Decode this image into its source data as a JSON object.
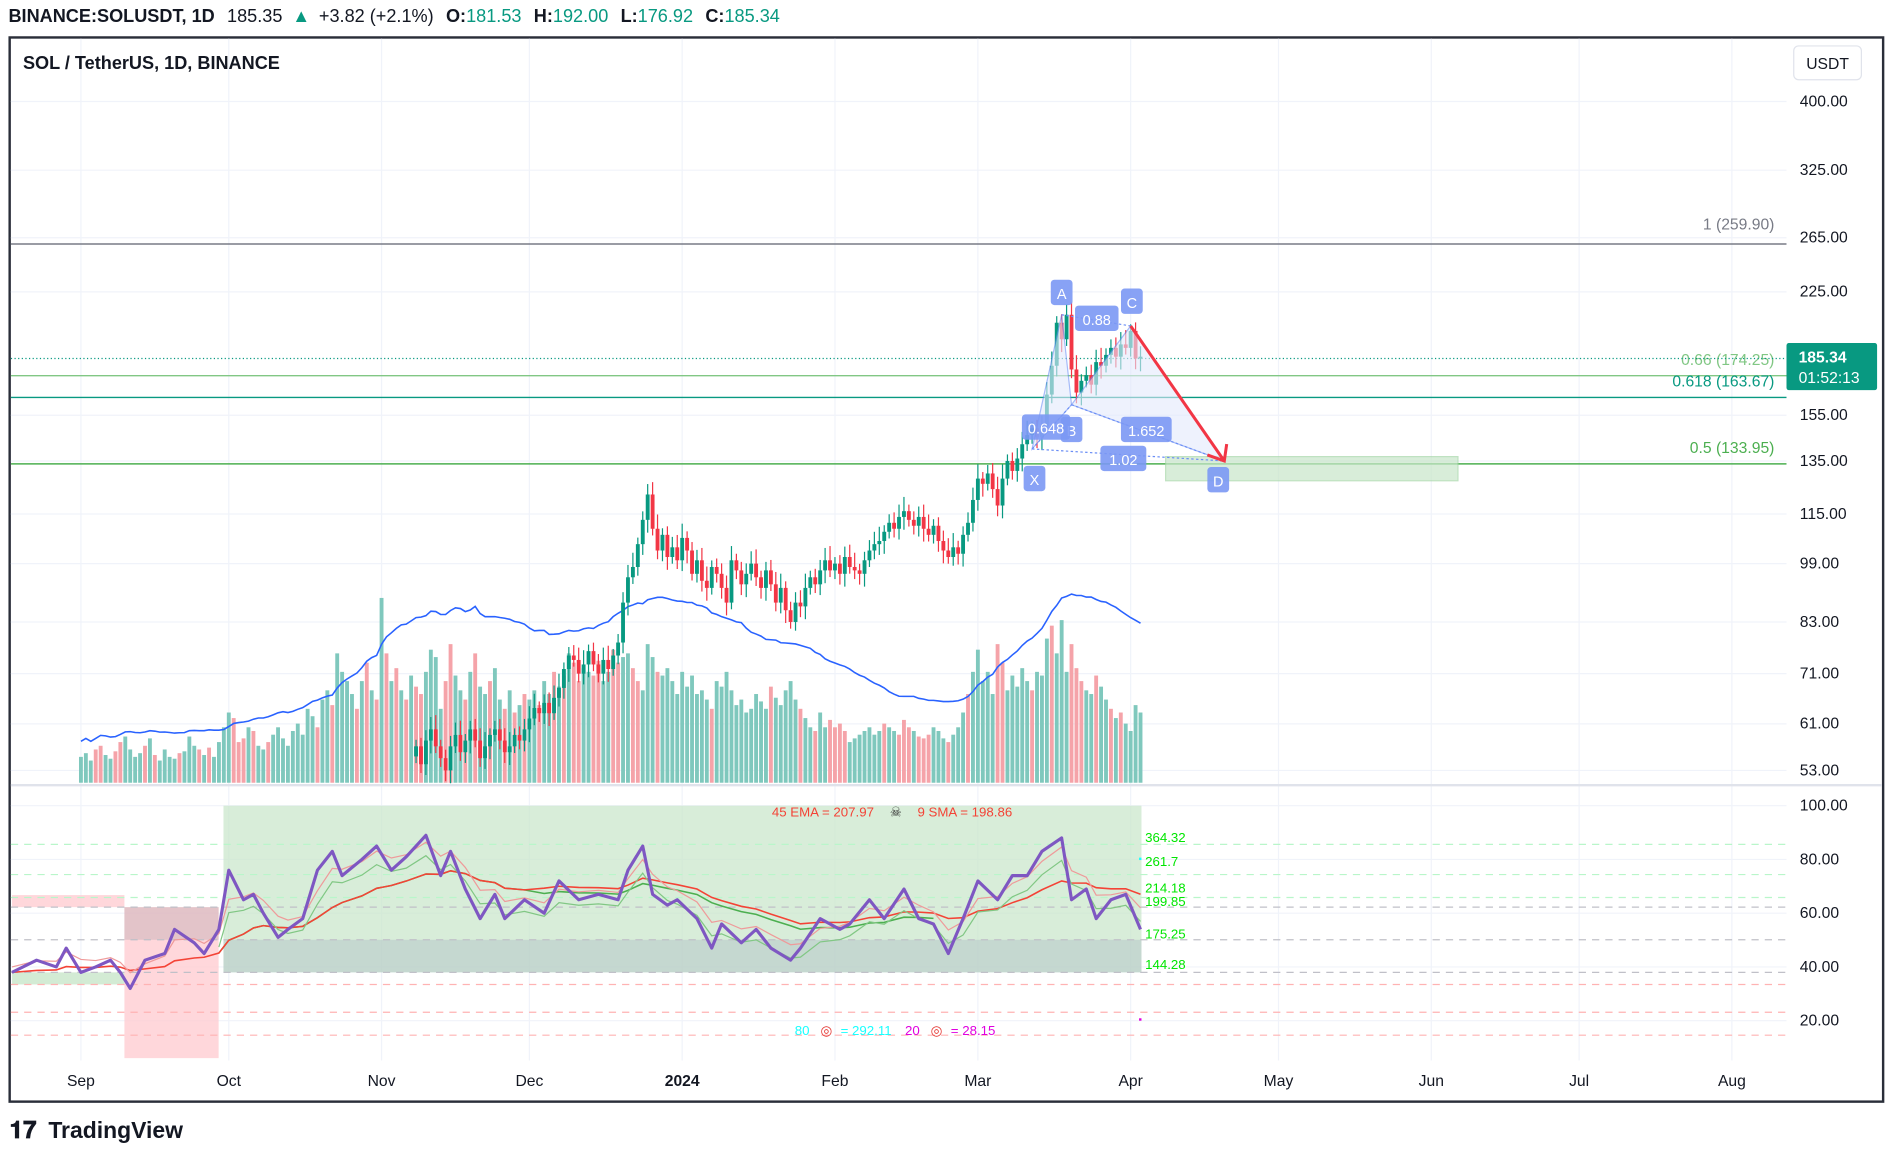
{
  "header": {
    "symbol": "BINANCE:SOLUSDT, 1D",
    "last": "185.35",
    "change": "+3.82 (+2.1%)",
    "o_label": "O:",
    "o": "181.53",
    "h_label": "H:",
    "h": "192.00",
    "l_label": "L:",
    "l": "176.92",
    "c_label": "C:",
    "c": "185.34",
    "up_icon": "triangle-up-icon"
  },
  "legend_title": "SOL / TetherUS, 1D, BINANCE",
  "currency_button": "USDT",
  "price_badge": {
    "price": "185.34",
    "countdown": "01:52:13"
  },
  "brand": "TradingView",
  "colors": {
    "up": "#089981",
    "down": "#f23645",
    "vol_up": "#7fc8bd",
    "vol_down": "#f5a3a9",
    "vol_ma": "#2962ff",
    "osc": "#7e57c2",
    "pattern": "#6b8ef5",
    "badge": "#089981"
  },
  "fib_levels": [
    {
      "label": "1 (259.90)",
      "price": 259.9,
      "color": "#787b86"
    },
    {
      "label": "0.66 (174.25)",
      "price": 174.25,
      "color": "#81c784"
    },
    {
      "label": "0.618 (163.67)",
      "price": 163.67,
      "color": "#089981"
    },
    {
      "label": "0.5 (133.95)",
      "price": 133.95,
      "color": "#4caf50"
    }
  ],
  "pattern": {
    "points": [
      {
        "label": "X",
        "date": "2024-03-12",
        "price": 140
      },
      {
        "label": "A",
        "date": "2024-03-18",
        "price": 210
      },
      {
        "label": "B",
        "date": "2024-03-20",
        "price": 160
      },
      {
        "label": "C",
        "date": "2024-04-01",
        "price": 203
      },
      {
        "label": "D",
        "date": "2024-04-20",
        "price": 135
      }
    ],
    "ratios": [
      "0.648",
      "0.88",
      "1.652",
      "1.02"
    ]
  },
  "oscillator": {
    "ema_label": "45 EMA = 207.97",
    "skull_icon": "skull-icon",
    "sma_label": "9 SMA = 198.86",
    "right_labels": [
      "364.32",
      "261.7",
      "214.18",
      "199.85",
      "175.25",
      "144.28"
    ],
    "bottom_labels": {
      "a_num": "80",
      "a_val": "= 292.11",
      "b_num": "20",
      "b_val": "= 28.15",
      "target_icon": "target-icon"
    },
    "ticks": [
      "100.00",
      "80.00",
      "60.00",
      "40.00",
      "20.00"
    ]
  },
  "chart_data": {
    "type": "candlestick",
    "title": "SOL / TetherUS, 1D, BINANCE",
    "price_scale": "log",
    "y_ticks": [
      "400.00",
      "325.00",
      "265.00",
      "225.00",
      "155.00",
      "135.00",
      "115.00",
      "99.00",
      "83.00",
      "71.00",
      "61.00",
      "53.00"
    ],
    "x_ticks": [
      "Sep",
      "Oct",
      "Nov",
      "Dec",
      "2024",
      "Feb",
      "Mar",
      "Apr",
      "May",
      "Jun",
      "Jul",
      "Aug"
    ],
    "closes": [
      [
        "2023-11-08",
        57
      ],
      [
        "2023-11-09",
        54
      ],
      [
        "2023-11-10",
        58
      ],
      [
        "2023-11-11",
        60
      ],
      [
        "2023-11-12",
        57
      ],
      [
        "2023-11-13",
        55
      ],
      [
        "2023-11-14",
        53
      ],
      [
        "2023-11-15",
        57
      ],
      [
        "2023-11-16",
        59
      ],
      [
        "2023-11-17",
        56
      ],
      [
        "2023-11-18",
        58
      ],
      [
        "2023-11-19",
        60
      ],
      [
        "2023-11-20",
        58
      ],
      [
        "2023-11-21",
        55
      ],
      [
        "2023-11-22",
        57
      ],
      [
        "2023-11-23",
        59
      ],
      [
        "2023-11-24",
        60
      ],
      [
        "2023-11-25",
        58
      ],
      [
        "2023-11-26",
        56
      ],
      [
        "2023-11-27",
        57
      ],
      [
        "2023-11-28",
        59
      ],
      [
        "2023-11-29",
        58
      ],
      [
        "2023-11-30",
        60
      ],
      [
        "2023-12-01",
        62
      ],
      [
        "2023-12-02",
        64
      ],
      [
        "2023-12-03",
        63
      ],
      [
        "2023-12-04",
        65
      ],
      [
        "2023-12-05",
        63
      ],
      [
        "2023-12-06",
        66
      ],
      [
        "2023-12-07",
        68
      ],
      [
        "2023-12-08",
        72
      ],
      [
        "2023-12-09",
        75
      ],
      [
        "2023-12-10",
        74
      ],
      [
        "2023-12-11",
        71
      ],
      [
        "2023-12-12",
        73
      ],
      [
        "2023-12-13",
        76
      ],
      [
        "2023-12-14",
        73
      ],
      [
        "2023-12-15",
        71
      ],
      [
        "2023-12-16",
        74
      ],
      [
        "2023-12-17",
        72
      ],
      [
        "2023-12-18",
        75
      ],
      [
        "2023-12-19",
        78
      ],
      [
        "2023-12-20",
        88
      ],
      [
        "2023-12-21",
        95
      ],
      [
        "2023-12-22",
        98
      ],
      [
        "2023-12-23",
        105
      ],
      [
        "2023-12-24",
        113
      ],
      [
        "2023-12-25",
        122
      ],
      [
        "2023-12-26",
        110
      ],
      [
        "2023-12-27",
        103
      ],
      [
        "2023-12-28",
        108
      ],
      [
        "2023-12-29",
        101
      ],
      [
        "2023-12-30",
        104
      ],
      [
        "2023-12-31",
        100
      ],
      [
        "2024-01-01",
        107
      ],
      [
        "2024-01-02",
        103
      ],
      [
        "2024-01-03",
        96
      ],
      [
        "2024-01-04",
        100
      ],
      [
        "2024-01-05",
        94
      ],
      [
        "2024-01-06",
        92
      ],
      [
        "2024-01-07",
        98
      ],
      [
        "2024-01-08",
        96
      ],
      [
        "2024-01-09",
        92
      ],
      [
        "2024-01-10",
        88
      ],
      [
        "2024-01-11",
        100
      ],
      [
        "2024-01-12",
        97
      ],
      [
        "2024-01-13",
        93
      ],
      [
        "2024-01-14",
        96
      ],
      [
        "2024-01-15",
        99
      ],
      [
        "2024-01-16",
        95
      ],
      [
        "2024-01-17",
        92
      ],
      [
        "2024-01-18",
        97
      ],
      [
        "2024-01-19",
        93
      ],
      [
        "2024-01-20",
        88
      ],
      [
        "2024-01-21",
        92
      ],
      [
        "2024-01-22",
        86
      ],
      [
        "2024-01-23",
        83
      ],
      [
        "2024-01-24",
        88
      ],
      [
        "2024-01-25",
        87
      ],
      [
        "2024-01-26",
        92
      ],
      [
        "2024-01-27",
        95
      ],
      [
        "2024-01-28",
        93
      ],
      [
        "2024-01-29",
        97
      ],
      [
        "2024-01-30",
        100
      ],
      [
        "2024-01-31",
        97
      ],
      [
        "2024-02-01",
        99
      ],
      [
        "2024-02-02",
        96
      ],
      [
        "2024-02-03",
        101
      ],
      [
        "2024-02-04",
        98
      ],
      [
        "2024-02-05",
        97
      ],
      [
        "2024-02-06",
        96
      ],
      [
        "2024-02-07",
        100
      ],
      [
        "2024-02-08",
        103
      ],
      [
        "2024-02-09",
        105
      ],
      [
        "2024-02-10",
        106
      ],
      [
        "2024-02-11",
        109
      ],
      [
        "2024-02-12",
        112
      ],
      [
        "2024-02-13",
        110
      ],
      [
        "2024-02-14",
        114
      ],
      [
        "2024-02-15",
        116
      ],
      [
        "2024-02-16",
        113
      ],
      [
        "2024-02-17",
        111
      ],
      [
        "2024-02-18",
        114
      ],
      [
        "2024-02-19",
        110
      ],
      [
        "2024-02-20",
        108
      ],
      [
        "2024-02-21",
        111
      ],
      [
        "2024-02-22",
        106
      ],
      [
        "2024-02-23",
        103
      ],
      [
        "2024-02-24",
        101
      ],
      [
        "2024-02-25",
        104
      ],
      [
        "2024-02-26",
        102
      ],
      [
        "2024-02-27",
        108
      ],
      [
        "2024-02-28",
        112
      ],
      [
        "2024-02-29",
        120
      ],
      [
        "2024-03-01",
        128
      ],
      [
        "2024-03-02",
        126
      ],
      [
        "2024-03-03",
        130
      ],
      [
        "2024-03-04",
        124
      ],
      [
        "2024-03-05",
        118
      ],
      [
        "2024-03-06",
        128
      ],
      [
        "2024-03-07",
        135
      ],
      [
        "2024-03-08",
        131
      ],
      [
        "2024-03-09",
        136
      ],
      [
        "2024-03-10",
        142
      ],
      [
        "2024-03-11",
        146
      ],
      [
        "2024-03-12",
        149
      ],
      [
        "2024-03-13",
        145
      ],
      [
        "2024-03-14",
        150
      ],
      [
        "2024-03-15",
        165
      ],
      [
        "2024-03-16",
        180
      ],
      [
        "2024-03-17",
        205
      ],
      [
        "2024-03-18",
        195
      ],
      [
        "2024-03-19",
        210
      ],
      [
        "2024-03-20",
        178
      ],
      [
        "2024-03-21",
        166
      ],
      [
        "2024-03-22",
        172
      ],
      [
        "2024-03-23",
        175
      ],
      [
        "2024-03-24",
        170
      ],
      [
        "2024-03-25",
        182
      ],
      [
        "2024-03-26",
        180
      ],
      [
        "2024-03-27",
        186
      ],
      [
        "2024-03-28",
        190
      ],
      [
        "2024-03-29",
        185
      ],
      [
        "2024-03-30",
        192
      ],
      [
        "2024-03-31",
        190
      ],
      [
        "2024-04-01",
        200
      ],
      [
        "2024-04-02",
        184
      ],
      [
        "2024-04-03",
        185
      ]
    ],
    "volume_relative": [
      14,
      16,
      12,
      18,
      20,
      15,
      13,
      17,
      22,
      25,
      18,
      14,
      16,
      20,
      24,
      15,
      12,
      18,
      14,
      13,
      16,
      17,
      25,
      20,
      18,
      15,
      19,
      14,
      22,
      30,
      38,
      35,
      22,
      24,
      30,
      28,
      20,
      18,
      22,
      26,
      30,
      24,
      20,
      28,
      32,
      26,
      40,
      36,
      30,
      45,
      50,
      42,
      70,
      60,
      55,
      48,
      40,
      55,
      65,
      50,
      45,
      100,
      70,
      55,
      62,
      50,
      45,
      58,
      52,
      48,
      60,
      72,
      68,
      40,
      55,
      75,
      58,
      50,
      45,
      60,
      70,
      52,
      48,
      55,
      62,
      45,
      40,
      50,
      38,
      42,
      48,
      45,
      50,
      42,
      55,
      48,
      60,
      52,
      58,
      70,
      65,
      55,
      62,
      60,
      58,
      66,
      55,
      60,
      72,
      65,
      68,
      70,
      62,
      55,
      50,
      75,
      68,
      60,
      58,
      62,
      55,
      48,
      60,
      52,
      58,
      48,
      50,
      45,
      40,
      55,
      52,
      60,
      50,
      42,
      45,
      38,
      40,
      48,
      44,
      40,
      52,
      46,
      42,
      50,
      55,
      45,
      40,
      35,
      30,
      28,
      38,
      30,
      34,
      30,
      32,
      28,
      22,
      24,
      26,
      28,
      30,
      26,
      28,
      32,
      30,
      28,
      26,
      34,
      30,
      28,
      25,
      24,
      26,
      30,
      28,
      24,
      22,
      26,
      30,
      38,
      48,
      60,
      72,
      55,
      60,
      48,
      75,
      65,
      50,
      58,
      52,
      62,
      55,
      50,
      60,
      58,
      78,
      85,
      70,
      88,
      60,
      75,
      62,
      55,
      50,
      48,
      58,
      52,
      45,
      40,
      35,
      38,
      32,
      28,
      42,
      38
    ],
    "volume_start": "2023-09-01",
    "oscillator_series": [
      [
        "2023-08-18",
        38
      ],
      [
        "2023-08-23",
        42.5
      ],
      [
        "2023-08-27",
        40
      ],
      [
        "2023-08-29",
        47
      ],
      [
        "2023-09-01",
        38
      ],
      [
        "2023-09-04",
        40
      ],
      [
        "2023-09-07",
        42.5
      ],
      [
        "2023-09-09",
        38
      ],
      [
        "2023-09-11",
        32
      ],
      [
        "2023-09-14",
        42.5
      ],
      [
        "2023-09-18",
        45
      ],
      [
        "2023-09-20",
        54
      ],
      [
        "2023-09-24",
        49
      ],
      [
        "2023-09-26",
        45
      ],
      [
        "2023-09-29",
        54
      ],
      [
        "2023-10-01",
        76
      ],
      [
        "2023-10-04",
        65
      ],
      [
        "2023-10-06",
        67
      ],
      [
        "2023-10-08",
        60
      ],
      [
        "2023-10-11",
        51
      ],
      [
        "2023-10-13",
        54
      ],
      [
        "2023-10-16",
        58
      ],
      [
        "2023-10-19",
        76
      ],
      [
        "2023-10-22",
        83
      ],
      [
        "2023-10-24",
        74
      ],
      [
        "2023-10-28",
        80
      ],
      [
        "2023-10-31",
        85
      ],
      [
        "2023-11-03",
        76
      ],
      [
        "2023-11-06",
        81
      ],
      [
        "2023-11-10",
        89
      ],
      [
        "2023-11-13",
        74
      ],
      [
        "2023-11-15",
        83
      ],
      [
        "2023-11-18",
        69
      ],
      [
        "2023-11-21",
        58
      ],
      [
        "2023-11-24",
        67
      ],
      [
        "2023-11-26",
        58
      ],
      [
        "2023-11-30",
        65
      ],
      [
        "2023-12-04",
        60
      ],
      [
        "2023-12-07",
        72
      ],
      [
        "2023-12-11",
        65
      ],
      [
        "2023-12-15",
        67
      ],
      [
        "2023-12-19",
        65
      ],
      [
        "2023-12-21",
        76
      ],
      [
        "2023-12-24",
        85
      ],
      [
        "2023-12-26",
        67
      ],
      [
        "2023-12-29",
        63
      ],
      [
        "2023-12-31",
        65
      ],
      [
        "2024-01-04",
        58
      ],
      [
        "2024-01-07",
        47
      ],
      [
        "2024-01-09",
        56
      ],
      [
        "2024-01-13",
        49
      ],
      [
        "2024-01-16",
        54
      ],
      [
        "2024-01-19",
        47
      ],
      [
        "2024-01-23",
        42.5
      ],
      [
        "2024-01-25",
        47
      ],
      [
        "2024-01-29",
        58
      ],
      [
        "2024-02-02",
        54
      ],
      [
        "2024-02-04",
        56
      ],
      [
        "2024-02-08",
        65
      ],
      [
        "2024-02-11",
        58
      ],
      [
        "2024-02-15",
        69
      ],
      [
        "2024-02-18",
        58
      ],
      [
        "2024-02-21",
        56
      ],
      [
        "2024-02-24",
        45
      ],
      [
        "2024-02-27",
        58
      ],
      [
        "2024-03-01",
        72
      ],
      [
        "2024-03-05",
        65
      ],
      [
        "2024-03-08",
        74
      ],
      [
        "2024-03-11",
        74
      ],
      [
        "2024-03-14",
        83
      ],
      [
        "2024-03-18",
        88
      ],
      [
        "2024-03-20",
        65
      ],
      [
        "2024-03-23",
        69
      ],
      [
        "2024-03-25",
        58
      ],
      [
        "2024-03-28",
        65
      ],
      [
        "2024-03-31",
        67
      ],
      [
        "2024-04-03",
        54
      ]
    ],
    "osc_ylim": [
      0,
      100
    ]
  }
}
